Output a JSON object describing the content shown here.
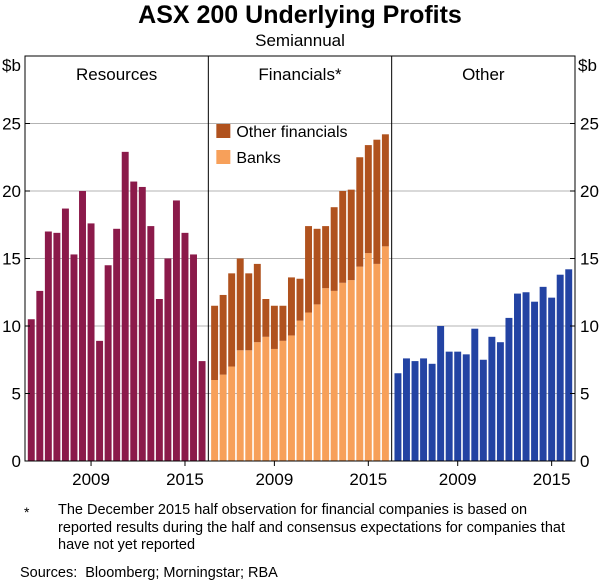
{
  "title": "ASX 200 Underlying Profits",
  "subtitle": "Semiannual",
  "footnote": {
    "marker": "*",
    "text": "The December 2015 half observation for financial companies is based on reported results during the half and consensus expectations for companies that have not yet reported"
  },
  "sources": {
    "label": "Sources:",
    "text": "Bloomberg; Morningstar; RBA"
  },
  "colors": {
    "resources": "#8b1a4a",
    "banks": "#f7a05a",
    "other_financials": "#b0521e",
    "other": "#2343a3",
    "grid": "#b3b3b3",
    "border": "#000000"
  },
  "chart_data": {
    "type": "bar",
    "ylabel_left": "$b",
    "ylabel_right": "$b",
    "ylim": [
      0,
      30
    ],
    "yticks": [
      0,
      5,
      10,
      15,
      20,
      25
    ],
    "panels": [
      {
        "title": "Resources",
        "xticks": [
          {
            "label": "2009",
            "index": 7
          },
          {
            "label": "2015",
            "index": 18
          }
        ],
        "stacked": false,
        "series": [
          {
            "name": "Resources",
            "color": "#8b1a4a",
            "values": [
              10.5,
              12.6,
              17.0,
              16.9,
              18.7,
              15.3,
              20.0,
              17.6,
              8.9,
              14.5,
              17.2,
              22.9,
              20.7,
              20.3,
              17.4,
              12.0,
              15.0,
              19.3,
              16.9,
              15.3,
              7.4
            ]
          }
        ]
      },
      {
        "title": "Financials*",
        "legend": [
          "Other financials",
          "Banks"
        ],
        "xticks": [
          {
            "label": "2009",
            "index": 7
          },
          {
            "label": "2015",
            "index": 18
          }
        ],
        "stacked": true,
        "series": [
          {
            "name": "Banks",
            "color": "#f7a05a",
            "values": [
              6.0,
              6.4,
              7.0,
              8.2,
              8.2,
              8.8,
              9.2,
              8.3,
              8.9,
              9.3,
              10.4,
              11.0,
              11.6,
              12.8,
              12.6,
              13.2,
              13.4,
              14.4,
              15.4,
              14.6,
              15.9
            ]
          },
          {
            "name": "Other financials",
            "color": "#b0521e",
            "values": [
              5.5,
              5.9,
              6.9,
              6.8,
              5.7,
              5.8,
              2.8,
              3.2,
              2.6,
              4.3,
              3.1,
              6.4,
              5.6,
              4.6,
              6.2,
              6.8,
              6.7,
              8.1,
              8.0,
              9.2,
              8.3
            ]
          }
        ]
      },
      {
        "title": "Other",
        "xticks": [
          {
            "label": "2009",
            "index": 7
          },
          {
            "label": "2015",
            "index": 18
          }
        ],
        "stacked": false,
        "series": [
          {
            "name": "Other",
            "color": "#2343a3",
            "values": [
              6.5,
              7.6,
              7.4,
              7.6,
              7.2,
              10.0,
              8.1,
              8.1,
              7.9,
              9.8,
              7.5,
              9.2,
              8.8,
              10.6,
              12.4,
              12.5,
              11.8,
              12.9,
              12.1,
              13.8,
              14.2
            ]
          }
        ]
      }
    ]
  }
}
